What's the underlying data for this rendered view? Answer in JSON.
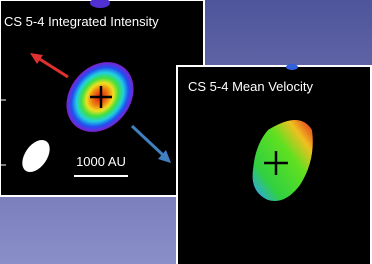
{
  "panels": [
    {
      "title": "CS 5-4 Integrated Intensity",
      "scale_label": "1000 AU"
    },
    {
      "title": "CS 5-4 Mean Velocity"
    }
  ]
}
